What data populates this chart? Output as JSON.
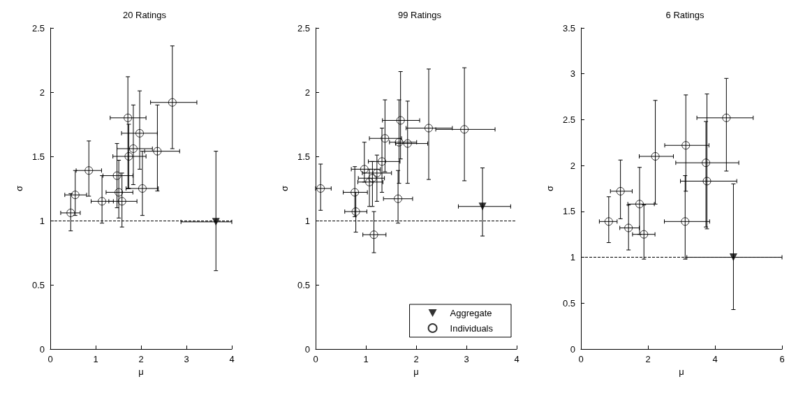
{
  "chart_data": [
    {
      "type": "scatter",
      "title": "20 Ratings",
      "xlabel": "μ",
      "ylabel": "σ",
      "xlim": [
        0,
        4
      ],
      "xticks": [
        0,
        1,
        2,
        3,
        4
      ],
      "ylim": [
        0,
        2.5
      ],
      "yticks": [
        0,
        0.5,
        1,
        1.5,
        2,
        2.5
      ],
      "grid": false,
      "legend": false,
      "ref_lines": [
        {
          "axis": "y",
          "value": 1,
          "line_style": "dashed",
          "color": "#000000"
        }
      ],
      "series": [
        {
          "marker": "triangle",
          "color": "#000000",
          "x": [
            3.65
          ],
          "values": [
            0.99
          ],
          "errors": [
            [
              0.61,
              1.54
            ]
          ],
          "xerrors": [
            [
              2.88,
              4.0
            ]
          ]
        },
        {
          "marker": "circle",
          "color": "#000000",
          "x": [
            0.45,
            0.55,
            0.85,
            1.14,
            1.47,
            1.51,
            1.58,
            1.71,
            1.73,
            1.83,
            1.97,
            2.03,
            2.36,
            2.69
          ],
          "values": [
            1.06,
            1.2,
            1.39,
            1.15,
            1.35,
            1.22,
            1.15,
            1.8,
            1.5,
            1.56,
            1.68,
            1.25,
            1.54,
            1.92
          ],
          "errors": [
            [
              0.92,
              1.21
            ],
            [
              1.04,
              1.39
            ],
            [
              1.19,
              1.62
            ],
            [
              0.98,
              1.35
            ],
            [
              1.1,
              1.6
            ],
            [
              1.02,
              1.47
            ],
            [
              0.95,
              1.37
            ],
            [
              1.25,
              2.12
            ],
            [
              1.25,
              1.75
            ],
            [
              1.28,
              1.9
            ],
            [
              1.4,
              2.01
            ],
            [
              1.04,
              1.54
            ],
            [
              1.23,
              1.9
            ],
            [
              1.56,
              2.36
            ]
          ],
          "xerrors": [
            [
              0.23,
              0.66
            ],
            [
              0.32,
              0.8
            ],
            [
              0.57,
              1.13
            ],
            [
              0.9,
              1.39
            ],
            [
              1.16,
              1.82
            ],
            [
              1.23,
              1.82
            ],
            [
              1.29,
              1.91
            ],
            [
              1.32,
              2.11
            ],
            [
              1.38,
              2.11
            ],
            [
              1.47,
              2.25
            ],
            [
              1.57,
              2.36
            ],
            [
              1.67,
              2.38
            ],
            [
              2.08,
              2.85
            ],
            [
              2.21,
              3.23
            ]
          ]
        }
      ]
    },
    {
      "type": "scatter",
      "title": "99 Ratings",
      "xlabel": "μ",
      "ylabel": "σ",
      "xlim": [
        0,
        4
      ],
      "xticks": [
        0,
        1,
        2,
        3,
        4
      ],
      "ylim": [
        0,
        2.5
      ],
      "yticks": [
        0,
        0.5,
        1,
        1.5,
        2,
        2.5
      ],
      "grid": false,
      "legend": "bottom right",
      "ref_lines": [
        {
          "axis": "y",
          "value": 1,
          "line_style": "dashed",
          "color": "#000000"
        }
      ],
      "series": [
        {
          "name": "Aggregate",
          "marker": "triangle",
          "color": "#000000",
          "x": [
            3.32
          ],
          "values": [
            1.11
          ],
          "errors": [
            [
              0.88,
              1.41
            ]
          ],
          "xerrors": [
            [
              2.84,
              3.88
            ]
          ]
        },
        {
          "name": "Individuals",
          "marker": "circle",
          "color": "#000000",
          "x": [
            0.1,
            0.78,
            0.8,
            1.16,
            0.97,
            1.07,
            1.13,
            1.22,
            1.32,
            1.38,
            1.66,
            1.69,
            1.83,
            1.64,
            2.25,
            2.96
          ],
          "values": [
            1.25,
            1.22,
            1.07,
            0.89,
            1.4,
            1.3,
            1.33,
            1.37,
            1.46,
            1.64,
            1.61,
            1.78,
            1.6,
            1.17,
            1.72,
            1.71
          ],
          "errors": [
            [
              1.08,
              1.44
            ],
            [
              1.03,
              1.42
            ],
            [
              0.91,
              1.22
            ],
            [
              0.75,
              1.07
            ],
            [
              1.3,
              1.61
            ],
            [
              1.11,
              1.4
            ],
            [
              1.11,
              1.46
            ],
            [
              1.15,
              1.51
            ],
            [
              1.22,
              1.72
            ],
            [
              1.38,
              1.94
            ],
            [
              1.29,
              1.94
            ],
            [
              1.48,
              2.16
            ],
            [
              1.29,
              1.93
            ],
            [
              0.98,
              1.39
            ],
            [
              1.32,
              2.18
            ],
            [
              1.31,
              2.19
            ]
          ],
          "xerrors": [
            [
              0.0,
              0.31
            ],
            [
              0.55,
              1.03
            ],
            [
              0.58,
              1.02
            ],
            [
              0.94,
              1.4
            ],
            [
              0.71,
              1.29
            ],
            [
              0.84,
              1.34
            ],
            [
              0.85,
              1.37
            ],
            [
              0.93,
              1.51
            ],
            [
              1.05,
              1.68
            ],
            [
              1.07,
              1.71
            ],
            [
              1.47,
              2.01
            ],
            [
              1.33,
              2.07
            ],
            [
              1.59,
              2.23
            ],
            [
              1.35,
              1.93
            ],
            [
              1.8,
              2.72
            ],
            [
              2.39,
              3.57
            ]
          ]
        }
      ]
    },
    {
      "type": "scatter",
      "title": "6 Ratings",
      "xlabel": "μ",
      "ylabel": "σ",
      "xlim": [
        0,
        6
      ],
      "xticks": [
        0,
        2,
        4,
        6
      ],
      "ylim": [
        0,
        3.5
      ],
      "yticks": [
        0,
        0.5,
        1,
        1.5,
        2,
        2.5,
        3,
        3.5
      ],
      "grid": false,
      "legend": false,
      "ref_lines": [
        {
          "axis": "y",
          "value": 1,
          "line_style": "dashed",
          "color": "#000000"
        }
      ],
      "series": [
        {
          "marker": "triangle",
          "color": "#000000",
          "x": [
            4.55
          ],
          "values": [
            1.0
          ],
          "errors": [
            [
              0.43,
              1.8
            ]
          ],
          "xerrors": [
            [
              3.16,
              6.0
            ]
          ]
        },
        {
          "marker": "circle",
          "color": "#000000",
          "x": [
            0.83,
            1.18,
            1.42,
            1.75,
            1.88,
            2.22,
            3.13,
            3.11,
            3.73,
            3.76,
            4.34
          ],
          "values": [
            1.39,
            1.72,
            1.32,
            1.58,
            1.25,
            2.1,
            2.22,
            1.39,
            2.03,
            1.83,
            2.52
          ],
          "errors": [
            [
              1.16,
              1.66
            ],
            [
              1.42,
              2.06
            ],
            [
              1.08,
              1.57
            ],
            [
              1.25,
              1.98
            ],
            [
              0.98,
              1.57
            ],
            [
              1.58,
              2.71
            ],
            [
              1.72,
              2.77
            ],
            [
              0.98,
              1.89
            ],
            [
              1.33,
              2.48
            ],
            [
              1.31,
              2.78
            ],
            [
              1.94,
              2.95
            ]
          ],
          "xerrors": [
            [
              0.55,
              1.08
            ],
            [
              0.88,
              1.53
            ],
            [
              1.16,
              1.74
            ],
            [
              1.4,
              2.19
            ],
            [
              1.54,
              2.21
            ],
            [
              1.74,
              2.76
            ],
            [
              2.5,
              3.82
            ],
            [
              2.49,
              3.84
            ],
            [
              2.83,
              4.71
            ],
            [
              2.97,
              4.65
            ],
            [
              3.46,
              5.14
            ]
          ]
        }
      ]
    }
  ]
}
